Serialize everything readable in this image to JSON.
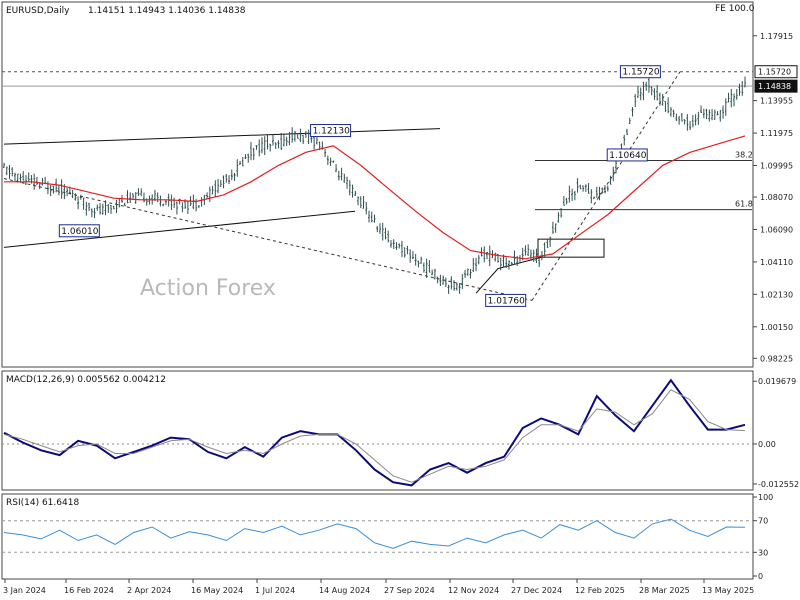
{
  "header": {
    "symbol": "EURUSD,Daily",
    "ohlc": "1.14151 1.14943 1.14036 1.14838",
    "fe_label": "FE 100.0"
  },
  "watermark": "Action Forex",
  "colors": {
    "candle": "#2f4f4f",
    "ma": "#e02020",
    "macd": "#0a0a7a",
    "signal": "#8a8a8a",
    "rsi": "#3a8fd8"
  },
  "chart_data": [
    {
      "type": "candlestick",
      "title": "EURUSD,Daily",
      "xlabel": "",
      "ylabel": "",
      "ylim": [
        0.98,
        1.19
      ],
      "y_ticks": [
        "1.17915",
        "1.15720",
        "1.14838",
        "1.13955",
        "1.11975",
        "1.09995",
        "1.08070",
        "1.06090",
        "1.04110",
        "1.02130",
        "1.00150",
        "0.98225"
      ],
      "x_ticks": [
        "3 Jan 2024",
        "16 Feb 2024",
        "2 Apr 2024",
        "16 May 2024",
        "1 Jul 2024",
        "14 Aug 2024",
        "27 Sep 2024",
        "12 Nov 2024",
        "27 Dec 2024",
        "12 Feb 2025",
        "28 Mar 2025",
        "13 May 2025"
      ],
      "annotations": [
        "1.12130",
        "1.06010",
        "1.01760",
        "1.10640",
        "1.15720"
      ],
      "fib_levels": [
        {
          "label": "38.2",
          "value": 1.103
        },
        {
          "label": "61.8",
          "value": 1.073
        }
      ],
      "reference_lines": [
        {
          "label": "1.15720",
          "value": 1.1572
        },
        {
          "label": "1.14838",
          "value": 1.1484
        }
      ],
      "ma_series_name": "",
      "trend_points": [
        [
          0,
          1.098
        ],
        [
          5,
          1.093
        ],
        [
          10,
          1.09
        ],
        [
          15,
          1.088
        ],
        [
          20,
          1.086
        ],
        [
          25,
          1.082
        ],
        [
          30,
          1.076
        ],
        [
          35,
          1.072
        ],
        [
          40,
          1.075
        ],
        [
          45,
          1.079
        ],
        [
          50,
          1.081
        ],
        [
          55,
          1.08
        ],
        [
          60,
          1.078
        ],
        [
          65,
          1.076
        ],
        [
          70,
          1.077
        ],
        [
          75,
          1.083
        ],
        [
          80,
          1.09
        ],
        [
          85,
          1.098
        ],
        [
          90,
          1.108
        ],
        [
          95,
          1.113
        ],
        [
          100,
          1.112
        ],
        [
          105,
          1.118
        ],
        [
          110,
          1.117
        ],
        [
          115,
          1.114
        ],
        [
          120,
          1.1
        ],
        [
          125,
          1.088
        ],
        [
          130,
          1.078
        ],
        [
          135,
          1.065
        ],
        [
          140,
          1.055
        ],
        [
          145,
          1.049
        ],
        [
          150,
          1.043
        ],
        [
          155,
          1.036
        ],
        [
          160,
          1.03
        ],
        [
          165,
          1.026
        ],
        [
          170,
          1.036
        ],
        [
          175,
          1.046
        ],
        [
          180,
          1.043
        ],
        [
          185,
          1.04
        ],
        [
          190,
          1.048
        ],
        [
          195,
          1.042
        ],
        [
          200,
          1.06
        ],
        [
          205,
          1.08
        ],
        [
          210,
          1.088
        ],
        [
          215,
          1.082
        ],
        [
          220,
          1.085
        ],
        [
          225,
          1.11
        ],
        [
          230,
          1.14
        ],
        [
          235,
          1.15
        ],
        [
          240,
          1.138
        ],
        [
          245,
          1.13
        ],
        [
          250,
          1.125
        ],
        [
          255,
          1.133
        ],
        [
          260,
          1.129
        ],
        [
          265,
          1.141
        ],
        [
          270,
          1.148
        ]
      ],
      "ma_points": [
        [
          0,
          1.09
        ],
        [
          10,
          1.09
        ],
        [
          20,
          1.088
        ],
        [
          30,
          1.084
        ],
        [
          40,
          1.08
        ],
        [
          50,
          1.079
        ],
        [
          60,
          1.079
        ],
        [
          70,
          1.078
        ],
        [
          80,
          1.082
        ],
        [
          90,
          1.09
        ],
        [
          100,
          1.1
        ],
        [
          110,
          1.108
        ],
        [
          120,
          1.112
        ],
        [
          130,
          1.1
        ],
        [
          140,
          1.086
        ],
        [
          150,
          1.072
        ],
        [
          160,
          1.059
        ],
        [
          170,
          1.048
        ],
        [
          180,
          1.045
        ],
        [
          190,
          1.043
        ],
        [
          200,
          1.046
        ],
        [
          210,
          1.058
        ],
        [
          220,
          1.07
        ],
        [
          230,
          1.085
        ],
        [
          240,
          1.1
        ],
        [
          250,
          1.108
        ],
        [
          260,
          1.113
        ],
        [
          270,
          1.118
        ]
      ]
    },
    {
      "type": "line",
      "title": "MACD(12,26,9) 0.005562 0.004212",
      "xlabel": "",
      "ylabel": "",
      "ylim": [
        -0.0135,
        0.021
      ],
      "y_ticks": [
        "0.019679",
        "0.00",
        "-0.012552"
      ],
      "series": [
        {
          "name": "",
          "points": [
            [
              0,
              0.0035
            ],
            [
              10,
              0.0005
            ],
            [
              20,
              -0.002
            ],
            [
              30,
              -0.0035
            ],
            [
              40,
              0.001
            ],
            [
              50,
              -0.0005
            ],
            [
              60,
              -0.0045
            ],
            [
              70,
              -0.0025
            ],
            [
              80,
              -0.0005
            ],
            [
              90,
              0.002
            ],
            [
              100,
              0.0015
            ],
            [
              110,
              -0.0025
            ],
            [
              120,
              -0.0045
            ],
            [
              130,
              -0.001
            ],
            [
              140,
              -0.004
            ],
            [
              150,
              0.002
            ],
            [
              160,
              0.004
            ],
            [
              170,
              0.003
            ],
            [
              180,
              0.003
            ],
            [
              190,
              -0.002
            ],
            [
              200,
              -0.008
            ],
            [
              210,
              -0.012
            ],
            [
              220,
              -0.013
            ],
            [
              230,
              -0.008
            ],
            [
              240,
              -0.006
            ],
            [
              250,
              -0.009
            ],
            [
              260,
              -0.006
            ],
            [
              270,
              -0.004
            ],
            [
              280,
              0.005
            ],
            [
              290,
              0.008
            ],
            [
              300,
              0.006
            ],
            [
              310,
              0.003
            ],
            [
              320,
              0.015
            ],
            [
              330,
              0.009
            ],
            [
              340,
              0.004
            ],
            [
              350,
              0.012
            ],
            [
              360,
              0.02
            ],
            [
              370,
              0.012
            ],
            [
              380,
              0.0045
            ],
            [
              390,
              0.0045
            ],
            [
              400,
              0.006
            ]
          ]
        },
        {
          "name": "",
          "points": [
            [
              0,
              0.003
            ],
            [
              10,
              0.0015
            ],
            [
              20,
              -0.0005
            ],
            [
              30,
              -0.0025
            ],
            [
              40,
              -0.0005
            ],
            [
              50,
              0.0
            ],
            [
              60,
              -0.003
            ],
            [
              70,
              -0.003
            ],
            [
              80,
              -0.001
            ],
            [
              90,
              0.001
            ],
            [
              100,
              0.0015
            ],
            [
              110,
              -0.001
            ],
            [
              120,
              -0.003
            ],
            [
              130,
              -0.002
            ],
            [
              140,
              -0.003
            ],
            [
              150,
              0.0
            ],
            [
              160,
              0.0025
            ],
            [
              170,
              0.003
            ],
            [
              180,
              0.003
            ],
            [
              190,
              0.0
            ],
            [
              200,
              -0.005
            ],
            [
              210,
              -0.01
            ],
            [
              220,
              -0.012
            ],
            [
              230,
              -0.0095
            ],
            [
              240,
              -0.007
            ],
            [
              250,
              -0.008
            ],
            [
              260,
              -0.007
            ],
            [
              270,
              -0.005
            ],
            [
              280,
              0.002
            ],
            [
              290,
              0.006
            ],
            [
              300,
              0.006
            ],
            [
              310,
              0.004
            ],
            [
              320,
              0.011
            ],
            [
              330,
              0.01
            ],
            [
              340,
              0.006
            ],
            [
              350,
              0.0095
            ],
            [
              360,
              0.017
            ],
            [
              370,
              0.014
            ],
            [
              380,
              0.007
            ],
            [
              390,
              0.0045
            ],
            [
              400,
              0.0042
            ]
          ]
        }
      ]
    },
    {
      "type": "line",
      "title": "RSI(14) 61.6418",
      "xlabel": "",
      "ylabel": "",
      "ylim": [
        0,
        100
      ],
      "y_ticks": [
        "100",
        "70",
        "30",
        "0"
      ],
      "levels": [
        70,
        30
      ],
      "series": [
        {
          "name": "",
          "points": [
            [
              0,
              55
            ],
            [
              10,
              52
            ],
            [
              20,
              47
            ],
            [
              30,
              58
            ],
            [
              40,
              45
            ],
            [
              50,
              52
            ],
            [
              60,
              40
            ],
            [
              70,
              55
            ],
            [
              80,
              62
            ],
            [
              90,
              48
            ],
            [
              100,
              56
            ],
            [
              110,
              52
            ],
            [
              120,
              45
            ],
            [
              130,
              60
            ],
            [
              140,
              55
            ],
            [
              150,
              63
            ],
            [
              160,
              52
            ],
            [
              170,
              58
            ],
            [
              180,
              66
            ],
            [
              190,
              60
            ],
            [
              200,
              42
            ],
            [
              210,
              35
            ],
            [
              220,
              44
            ],
            [
              230,
              40
            ],
            [
              240,
              38
            ],
            [
              250,
              48
            ],
            [
              260,
              42
            ],
            [
              270,
              52
            ],
            [
              280,
              58
            ],
            [
              290,
              48
            ],
            [
              300,
              65
            ],
            [
              310,
              58
            ],
            [
              320,
              70
            ],
            [
              330,
              55
            ],
            [
              340,
              48
            ],
            [
              350,
              66
            ],
            [
              360,
              72
            ],
            [
              370,
              58
            ],
            [
              380,
              50
            ],
            [
              390,
              62
            ],
            [
              400,
              61.6
            ]
          ]
        }
      ]
    }
  ]
}
